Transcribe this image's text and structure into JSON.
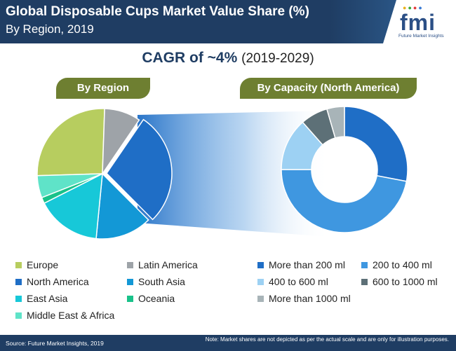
{
  "header": {
    "title_line1": "Global Disposable Cups Market Value Share (%)",
    "title_line2": "By Region, 2019"
  },
  "logo": {
    "text": "fmi",
    "subtitle": "Future Market Insights",
    "dot_colors": [
      "#e8b21e",
      "#3aaa35",
      "#e23c3c",
      "#3b7bd4"
    ]
  },
  "cagr": {
    "label": "CAGR of ~4%",
    "period": "(2019-2029)"
  },
  "pills": {
    "left": "By Region",
    "right": "By Capacity (North America)"
  },
  "chart_data": [
    {
      "type": "pie",
      "categories": [
        "Europe",
        "Latin America",
        "North America",
        "South Asia",
        "East Asia",
        "Oceania",
        "Middle East & Africa"
      ],
      "values": [
        26,
        9,
        28,
        14,
        16,
        1.5,
        5.5
      ],
      "colors": [
        "#b7cd5f",
        "#9ea3a8",
        "#1f6ec6",
        "#1398d6",
        "#17c8d8",
        "#19c28a",
        "#5fe3c8"
      ]
    },
    {
      "type": "pie",
      "donut": true,
      "categories": [
        "More than 200 ml",
        "200 to 400 ml",
        "400 to 600 ml",
        "600 to 1000 ml",
        "More than 1000 ml"
      ],
      "values": [
        28,
        47,
        13.5,
        7,
        4.5
      ],
      "colors": [
        "#1f6ec6",
        "#3f97e0",
        "#9dd1f3",
        "#5d7077",
        "#a8b4b8"
      ]
    }
  ],
  "legend_left": {
    "items": [
      {
        "label": "Europe",
        "color": "#b7cd5f"
      },
      {
        "label": "Latin America",
        "color": "#9ea3a8"
      },
      {
        "label": "North America",
        "color": "#1f6ec6"
      },
      {
        "label": "South Asia",
        "color": "#1398d6"
      },
      {
        "label": "East Asia",
        "color": "#17c8d8"
      },
      {
        "label": "Oceania",
        "color": "#19c28a"
      },
      {
        "label": "Middle East & Africa",
        "color": "#5fe3c8"
      }
    ]
  },
  "legend_right": {
    "items": [
      {
        "label": "More than 200 ml",
        "color": "#1f6ec6"
      },
      {
        "label": "200 to 400 ml",
        "color": "#3f97e0"
      },
      {
        "label": "400 to 600 ml",
        "color": "#9dd1f3"
      },
      {
        "label": "600 to 1000 ml",
        "color": "#5d7077"
      },
      {
        "label": "More than 1000 ml",
        "color": "#a8b4b8"
      }
    ]
  },
  "footer": {
    "source": "Source: Future Market Insights, 2019",
    "note": "Note: Market shares are not depicted as per the actual scale and are only for illustration purposes."
  }
}
